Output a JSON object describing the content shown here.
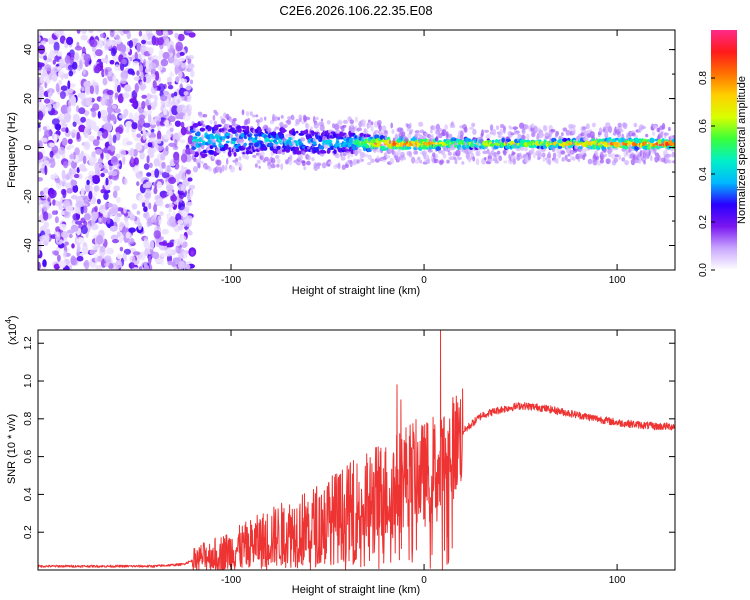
{
  "title": "C2E6.2026.106.22.35.E08",
  "chart_data": [
    {
      "type": "heatmap",
      "name": "spectrogram",
      "xlabel": "Height of straight line (km)",
      "ylabel": "Frequency (Hz)",
      "xlim": [
        -200,
        130
      ],
      "ylim": [
        -50,
        48
      ],
      "xticks": [
        -100,
        0,
        100
      ],
      "xtick_labels": [
        "-100",
        "0",
        "100"
      ],
      "yticks": [
        -40,
        -20,
        0,
        20,
        40
      ],
      "ytick_labels": [
        "-40",
        "-20",
        "0",
        "20",
        "40"
      ],
      "noise_region_x": [
        -200,
        -120
      ],
      "noise_region_amplitude": 0.2,
      "ridge": [
        {
          "x": -120,
          "center": 3,
          "halfwidth": 7,
          "amplitude": 0.45
        },
        {
          "x": -100,
          "center": 3,
          "halfwidth": 6,
          "amplitude": 0.4
        },
        {
          "x": -80,
          "center": 3,
          "halfwidth": 5,
          "amplitude": 0.4
        },
        {
          "x": -60,
          "center": 2,
          "halfwidth": 4.5,
          "amplitude": 0.4
        },
        {
          "x": -40,
          "center": 2,
          "halfwidth": 4,
          "amplitude": 0.4
        },
        {
          "x": -20,
          "center": 1.5,
          "halfwidth": 2.5,
          "amplitude": 0.85
        },
        {
          "x": 0,
          "center": 1.5,
          "halfwidth": 2,
          "amplitude": 0.8
        },
        {
          "x": 20,
          "center": 1.5,
          "halfwidth": 2,
          "amplitude": 0.6
        },
        {
          "x": 60,
          "center": 1.5,
          "halfwidth": 1.5,
          "amplitude": 0.7
        },
        {
          "x": 100,
          "center": 1.5,
          "halfwidth": 2,
          "amplitude": 0.8
        },
        {
          "x": 130,
          "center": 1.5,
          "halfwidth": 1.5,
          "amplitude": 0.95
        }
      ],
      "colorbar": {
        "label": "Normalized spectral amplitude",
        "range": [
          0,
          1
        ],
        "ticks": [
          0.0,
          0.2,
          0.4,
          0.6,
          0.8
        ],
        "tick_labels": [
          "0.0",
          "0.2",
          "0.4",
          "0.6",
          "0.8"
        ],
        "colormap": [
          "#ffffff",
          "#c9a6ff",
          "#7a16f0",
          "#2a00ff",
          "#00b8ff",
          "#00f0c8",
          "#38ff3a",
          "#d8ff00",
          "#ffd000",
          "#ff7000",
          "#ff1a1a",
          "#ff2a8a"
        ]
      }
    },
    {
      "type": "line",
      "name": "snr",
      "xlabel": "Height of straight line (km)",
      "ylabel": "SNR (10 * v/v)",
      "y_multiplier_label": "(x10",
      "y_multiplier_exponent": "4",
      "y_multiplier_suffix": ")",
      "xlim": [
        -200,
        130
      ],
      "ylim": [
        0,
        1.27
      ],
      "xticks": [
        -100,
        0,
        100
      ],
      "xtick_labels": [
        "-100",
        "0",
        "100"
      ],
      "yticks": [
        0.2,
        0.4,
        0.6,
        0.8,
        1.0,
        1.2
      ],
      "ytick_labels": [
        "0.2",
        "0.4",
        "0.6",
        "0.8",
        "1.0",
        "1.2"
      ],
      "color": "#ee3333",
      "series": [
        {
          "name": "SNR trend",
          "x": [
            -200,
            -170,
            -140,
            -125,
            -120,
            -115,
            -100,
            -80,
            -60,
            -40,
            -30,
            -20,
            -15,
            -10,
            -5,
            0,
            5,
            8,
            10,
            15,
            20,
            30,
            40,
            50,
            60,
            70,
            80,
            90,
            100,
            110,
            120,
            130
          ],
          "y": [
            0.02,
            0.02,
            0.02,
            0.03,
            0.05,
            0.07,
            0.1,
            0.17,
            0.22,
            0.3,
            0.34,
            0.4,
            0.45,
            0.5,
            0.52,
            0.5,
            0.55,
            0.48,
            0.58,
            0.65,
            0.73,
            0.82,
            0.85,
            0.87,
            0.86,
            0.84,
            0.82,
            0.8,
            0.78,
            0.77,
            0.76,
            0.76
          ]
        }
      ],
      "spikes": [
        {
          "x": -14,
          "y": 0.98
        },
        {
          "x": -12,
          "y": 0.9
        },
        {
          "x": 8.5,
          "y": 1.27
        }
      ],
      "dips": [
        {
          "x": 9.5,
          "y": 0.0
        }
      ]
    }
  ]
}
